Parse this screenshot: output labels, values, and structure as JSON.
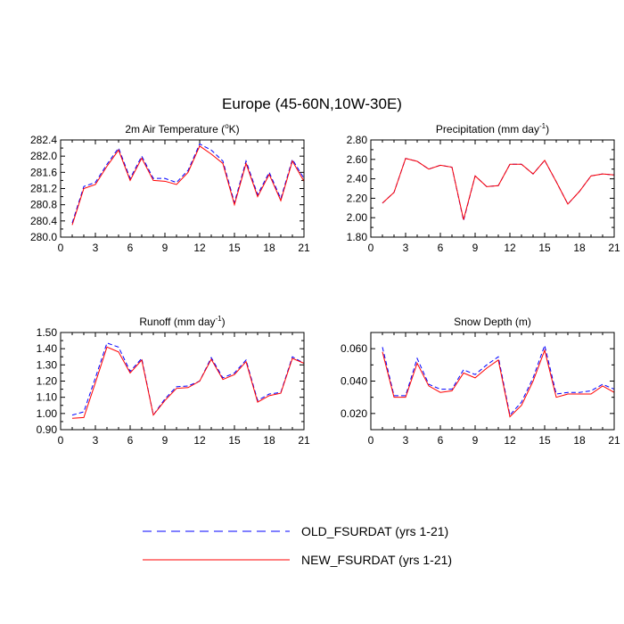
{
  "figure_title": "Europe (45-60N,10W-30E)",
  "legend": {
    "items": [
      {
        "label": "OLD_FSURDAT (yrs 1-21)",
        "color": "#0000ff",
        "style": "dashed"
      },
      {
        "label": "NEW_FSURDAT (yrs 1-21)",
        "color": "#ff0000",
        "style": "solid"
      }
    ]
  },
  "chart_data": [
    {
      "type": "line",
      "title": "2m Air Temperature (",
      "title_sup": "o",
      "title_post": "K)",
      "xlim": [
        0,
        21
      ],
      "ylim": [
        280.0,
        282.4
      ],
      "xticks": [
        0,
        3,
        6,
        9,
        12,
        15,
        18,
        21
      ],
      "xtick_labels": [
        "0",
        "3",
        "6",
        "9",
        "12",
        "15",
        "18",
        "21"
      ],
      "yticks": [
        280.0,
        280.4,
        280.8,
        281.2,
        281.6,
        282.0,
        282.4
      ],
      "ytick_labels": [
        "280.0",
        "280.4",
        "280.8",
        "281.2",
        "281.6",
        "282.0",
        "282.4"
      ],
      "x": [
        1,
        2,
        3,
        4,
        5,
        6,
        7,
        8,
        9,
        10,
        11,
        12,
        13,
        14,
        15,
        16,
        17,
        18,
        19,
        20,
        21
      ],
      "series": [
        {
          "name": "OLD_FSURDAT (yrs 1-21)",
          "color": "#0000ff",
          "style": "dashed",
          "values": [
            280.35,
            281.25,
            281.35,
            281.8,
            282.2,
            281.45,
            282.0,
            281.45,
            281.45,
            281.35,
            281.65,
            282.3,
            282.15,
            281.88,
            280.85,
            281.88,
            281.05,
            281.6,
            280.95,
            281.92,
            281.45
          ]
        },
        {
          "name": "NEW_FSURDAT (yrs 1-21)",
          "color": "#ff0000",
          "style": "solid",
          "values": [
            280.3,
            281.2,
            281.3,
            281.75,
            282.15,
            281.4,
            281.95,
            281.4,
            281.38,
            281.3,
            281.6,
            282.25,
            282.05,
            281.82,
            280.8,
            281.82,
            281.0,
            281.55,
            280.9,
            281.88,
            281.38
          ]
        }
      ]
    },
    {
      "type": "line",
      "title": "Precipitation (mm day",
      "title_sup": "-1",
      "title_post": ")",
      "xlim": [
        0,
        21
      ],
      "ylim": [
        1.8,
        2.8
      ],
      "xticks": [
        0,
        3,
        6,
        9,
        12,
        15,
        18,
        21
      ],
      "xtick_labels": [
        "0",
        "3",
        "6",
        "9",
        "12",
        "15",
        "18",
        "21"
      ],
      "yticks": [
        1.8,
        2.0,
        2.2,
        2.4,
        2.6,
        2.8
      ],
      "ytick_labels": [
        "1.80",
        "2.00",
        "2.20",
        "2.40",
        "2.60",
        "2.80"
      ],
      "x": [
        1,
        2,
        3,
        4,
        5,
        6,
        7,
        8,
        9,
        10,
        11,
        12,
        13,
        14,
        15,
        16,
        17,
        18,
        19,
        20,
        21
      ],
      "series": [
        {
          "name": "OLD_FSURDAT (yrs 1-21)",
          "color": "#0000ff",
          "style": "dashed",
          "values": [
            2.15,
            2.26,
            2.61,
            2.58,
            2.5,
            2.54,
            2.52,
            1.97,
            2.43,
            2.32,
            2.33,
            2.55,
            2.55,
            2.45,
            2.59,
            2.37,
            2.14,
            2.27,
            2.43,
            2.45,
            2.44
          ]
        },
        {
          "name": "NEW_FSURDAT (yrs 1-21)",
          "color": "#ff0000",
          "style": "solid",
          "values": [
            2.15,
            2.26,
            2.61,
            2.58,
            2.5,
            2.54,
            2.52,
            1.98,
            2.43,
            2.32,
            2.33,
            2.55,
            2.55,
            2.45,
            2.59,
            2.37,
            2.14,
            2.27,
            2.43,
            2.45,
            2.44
          ]
        }
      ]
    },
    {
      "type": "line",
      "title": "Runoff (mm day",
      "title_sup": "-1",
      "title_post": ")",
      "xlim": [
        0,
        21
      ],
      "ylim": [
        0.9,
        1.5
      ],
      "xticks": [
        0,
        3,
        6,
        9,
        12,
        15,
        18,
        21
      ],
      "xtick_labels": [
        "0",
        "3",
        "6",
        "9",
        "12",
        "15",
        "18",
        "21"
      ],
      "yticks": [
        0.9,
        1.0,
        1.1,
        1.2,
        1.3,
        1.4,
        1.5
      ],
      "ytick_labels": [
        "0.90",
        "1.00",
        "1.10",
        "1.20",
        "1.30",
        "1.40",
        "1.50"
      ],
      "x": [
        1,
        2,
        3,
        4,
        5,
        6,
        7,
        8,
        9,
        10,
        11,
        12,
        13,
        14,
        15,
        16,
        17,
        18,
        19,
        20,
        21
      ],
      "series": [
        {
          "name": "OLD_FSURDAT (yrs 1-21)",
          "color": "#0000ff",
          "style": "dashed",
          "values": [
            0.99,
            1.01,
            1.22,
            1.435,
            1.41,
            1.26,
            1.34,
            0.99,
            1.09,
            1.165,
            1.17,
            1.2,
            1.345,
            1.22,
            1.25,
            1.33,
            1.08,
            1.12,
            1.13,
            1.35,
            1.31
          ]
        },
        {
          "name": "NEW_FSURDAT (yrs 1-21)",
          "color": "#ff0000",
          "style": "solid",
          "values": [
            0.97,
            0.975,
            1.19,
            1.41,
            1.38,
            1.25,
            1.33,
            0.99,
            1.08,
            1.155,
            1.16,
            1.2,
            1.335,
            1.21,
            1.24,
            1.32,
            1.07,
            1.11,
            1.125,
            1.34,
            1.31
          ]
        }
      ]
    },
    {
      "type": "line",
      "title": "Snow Depth (m)",
      "title_sup": "",
      "title_post": "",
      "xlim": [
        0,
        21
      ],
      "ylim": [
        0.01,
        0.07
      ],
      "xticks": [
        0,
        3,
        6,
        9,
        12,
        15,
        18,
        21
      ],
      "xtick_labels": [
        "0",
        "3",
        "6",
        "9",
        "12",
        "15",
        "18",
        "21"
      ],
      "yticks": [
        0.02,
        0.04,
        0.06
      ],
      "ytick_labels": [
        "0.020",
        "0.040",
        "0.060"
      ],
      "x": [
        1,
        2,
        3,
        4,
        5,
        6,
        7,
        8,
        9,
        10,
        11,
        12,
        13,
        14,
        15,
        16,
        17,
        18,
        19,
        20,
        21
      ],
      "series": [
        {
          "name": "OLD_FSURDAT (yrs 1-21)",
          "color": "#0000ff",
          "style": "dashed",
          "values": [
            0.061,
            0.031,
            0.031,
            0.054,
            0.038,
            0.035,
            0.035,
            0.047,
            0.044,
            0.05,
            0.055,
            0.019,
            0.027,
            0.042,
            0.062,
            0.032,
            0.033,
            0.033,
            0.034,
            0.038,
            0.035
          ]
        },
        {
          "name": "NEW_FSURDAT (yrs 1-21)",
          "color": "#ff0000",
          "style": "solid",
          "values": [
            0.058,
            0.03,
            0.03,
            0.051,
            0.037,
            0.033,
            0.034,
            0.045,
            0.042,
            0.048,
            0.053,
            0.018,
            0.025,
            0.04,
            0.059,
            0.03,
            0.032,
            0.032,
            0.032,
            0.037,
            0.033
          ]
        }
      ]
    }
  ]
}
